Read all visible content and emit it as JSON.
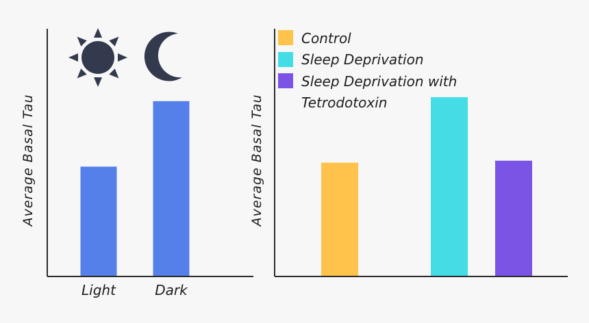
{
  "chart_data": [
    {
      "type": "bar",
      "title": "",
      "xlabel": "",
      "ylabel": "Average Basal Tau",
      "categories": [
        "Light",
        "Dark"
      ],
      "values": [
        5.5,
        8.8
      ],
      "ylim": [
        0,
        10
      ],
      "colors": [
        "#5580e9",
        "#5580e9"
      ],
      "icons": [
        "sun-icon",
        "moon-icon"
      ],
      "icon_color": "#343a4d",
      "grid": false
    },
    {
      "type": "bar",
      "title": "",
      "xlabel": "",
      "ylabel": "Average Basal Tau",
      "categories": [
        "Control",
        "Sleep Deprivation",
        "Sleep Deprivation with Tetrodotoxin"
      ],
      "values": [
        5.7,
        9.0,
        5.8
      ],
      "ylim": [
        0,
        10
      ],
      "colors": [
        "#ffc24a",
        "#44dde6",
        "#7b54e6"
      ],
      "legend": {
        "position": "top",
        "entries": [
          "Control",
          "Sleep Deprivation",
          "Sleep Deprivation with Tetrodotoxin"
        ]
      },
      "grid": false
    }
  ]
}
